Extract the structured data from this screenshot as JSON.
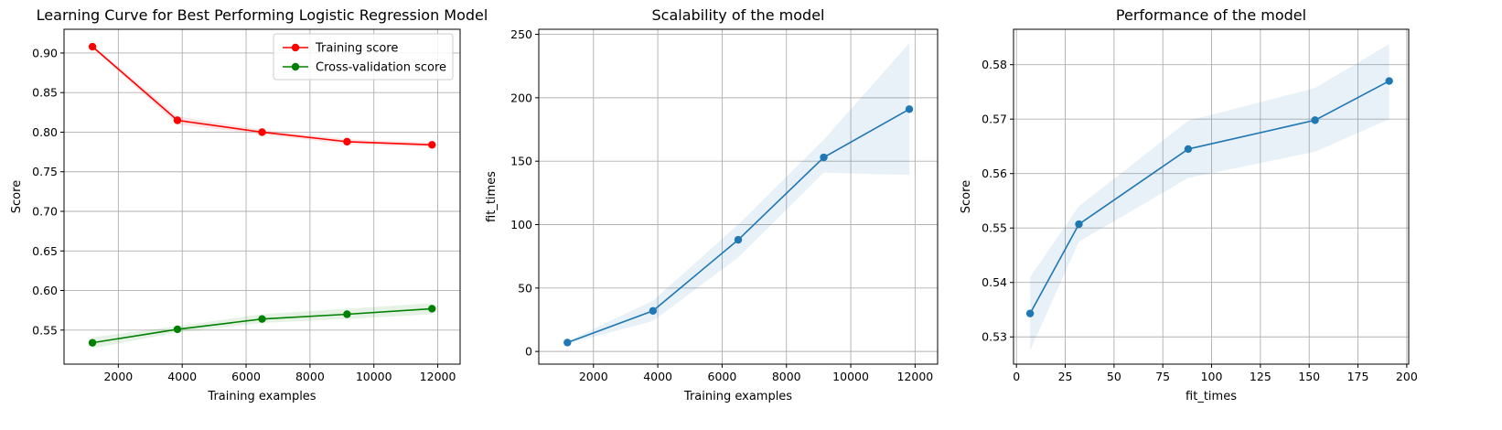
{
  "chart_data": [
    {
      "type": "line",
      "title": "Learning Curve for Best Performing Logistic Regression Model",
      "xlabel": "Training examples",
      "ylabel": "Score",
      "xlim": [
        300,
        12700
      ],
      "ylim": [
        0.507,
        0.93
      ],
      "xticks": [
        2000,
        4000,
        6000,
        8000,
        10000,
        12000
      ],
      "xtick_labels": [
        "2000",
        "4000",
        "6000",
        "8000",
        "10000",
        "12000"
      ],
      "yticks": [
        0.55,
        0.6,
        0.65,
        0.7,
        0.75,
        0.8,
        0.85,
        0.9
      ],
      "ytick_labels": [
        "0.55",
        "0.60",
        "0.65",
        "0.70",
        "0.75",
        "0.80",
        "0.85",
        "0.90"
      ],
      "grid": true,
      "legend_position": "top-right",
      "x": [
        1190,
        3850,
        6500,
        9160,
        11820
      ],
      "series": [
        {
          "name": "Training score",
          "color": "#ff0000",
          "band_color": "#ff0000",
          "values": [
            0.908,
            0.815,
            0.8,
            0.788,
            0.784
          ],
          "lower": [
            0.906,
            0.81,
            0.797,
            0.785,
            0.781
          ],
          "upper": [
            0.91,
            0.82,
            0.803,
            0.791,
            0.787
          ]
        },
        {
          "name": "Cross-validation score",
          "color": "#008000",
          "band_color": "#008000",
          "values": [
            0.534,
            0.551,
            0.564,
            0.57,
            0.577
          ],
          "lower": [
            0.527,
            0.547,
            0.559,
            0.564,
            0.57
          ],
          "upper": [
            0.541,
            0.555,
            0.57,
            0.577,
            0.584
          ]
        }
      ]
    },
    {
      "type": "line",
      "title": "Scalability of the model",
      "xlabel": "Training examples",
      "ylabel": "fit_times",
      "xlim": [
        300,
        12700
      ],
      "ylim": [
        -10,
        254
      ],
      "xticks": [
        2000,
        4000,
        6000,
        8000,
        10000,
        12000
      ],
      "xtick_labels": [
        "2000",
        "4000",
        "6000",
        "8000",
        "10000",
        "12000"
      ],
      "yticks": [
        0,
        50,
        100,
        150,
        200,
        250
      ],
      "ytick_labels": [
        "0",
        "50",
        "100",
        "150",
        "200",
        "250"
      ],
      "grid": true,
      "x": [
        1190,
        3850,
        6500,
        9160,
        11820
      ],
      "series": [
        {
          "color": "#1f77b4",
          "band_color": "#1f77b4",
          "values": [
            7,
            32,
            88,
            153,
            191
          ],
          "lower": [
            6,
            24,
            74,
            141,
            139
          ],
          "upper": [
            8,
            40,
            100,
            167,
            243
          ]
        }
      ]
    },
    {
      "type": "line",
      "title": "Performance of the model",
      "xlabel": "fit_times",
      "ylabel": "Score",
      "xlim": [
        -1.5,
        201
      ],
      "ylim": [
        0.525,
        0.5865
      ],
      "xticks": [
        0,
        25,
        50,
        75,
        100,
        125,
        150,
        175,
        200
      ],
      "xtick_labels": [
        "0",
        "25",
        "50",
        "75",
        "100",
        "125",
        "150",
        "175",
        "200"
      ],
      "yticks": [
        0.53,
        0.54,
        0.55,
        0.56,
        0.57,
        0.58
      ],
      "ytick_labels": [
        "0.53",
        "0.54",
        "0.55",
        "0.56",
        "0.57",
        "0.58"
      ],
      "grid": true,
      "x": [
        7,
        32,
        88,
        153,
        191
      ],
      "series": [
        {
          "color": "#1f77b4",
          "band_color": "#1f77b4",
          "values": [
            0.5343,
            0.5507,
            0.5645,
            0.5698,
            0.577
          ],
          "lower": [
            0.5275,
            0.5475,
            0.5592,
            0.564,
            0.57
          ],
          "upper": [
            0.541,
            0.554,
            0.5697,
            0.5757,
            0.5838
          ]
        }
      ]
    }
  ]
}
